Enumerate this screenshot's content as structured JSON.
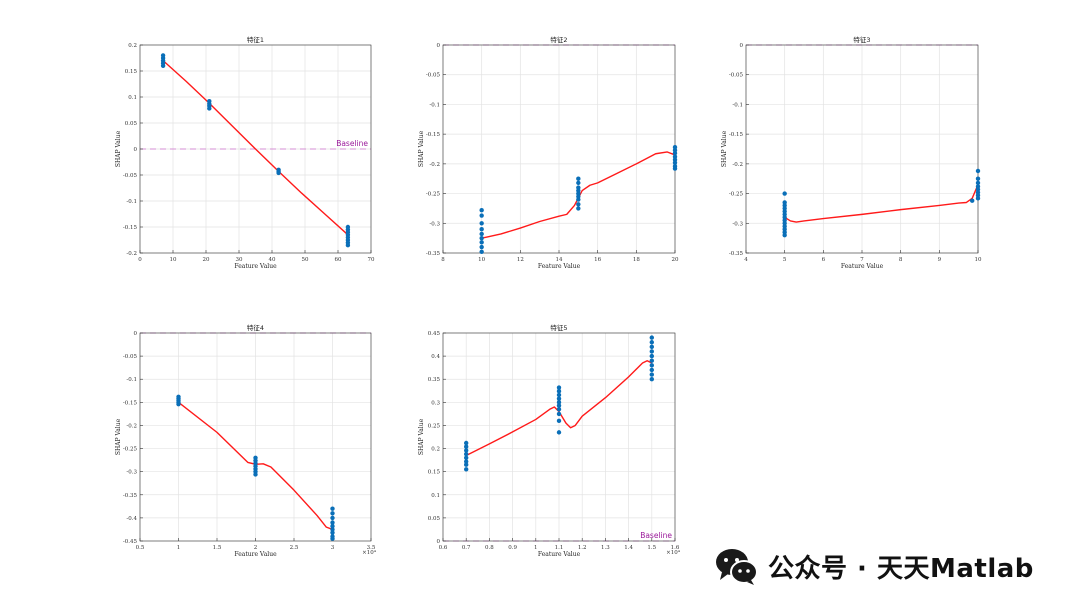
{
  "watermark": {
    "text": "公众号 · 天天Matlab",
    "icon": "wechat-icon"
  },
  "colors": {
    "points": "#0a6fb8",
    "fit": "#ff1a1a",
    "baseline": "#d58fd4",
    "baseline_text": "#9b199b",
    "grid": "#e3e3e3",
    "axis": "#333333"
  },
  "chart_data": [
    {
      "type": "scatter",
      "title": "特征1",
      "xlabel": "Feature Value",
      "ylabel": "SHAP Value",
      "xlim": [
        0,
        70
      ],
      "ylim": [
        -0.2,
        0.2
      ],
      "xticks": [
        0,
        10,
        20,
        30,
        40,
        50,
        60,
        70
      ],
      "yticks": [
        -0.2,
        -0.15,
        -0.1,
        -0.05,
        0,
        0.05,
        0.1,
        0.15,
        0.2
      ],
      "xtick_labels": [
        "0",
        "10",
        "20",
        "30",
        "40",
        "50",
        "60",
        "70"
      ],
      "ytick_labels": [
        "-0.2",
        "-0.15",
        "-0.1",
        "-0.05",
        "0",
        "0.05",
        "0.1",
        "0.15",
        "0.2"
      ],
      "x_exponent": "",
      "baseline": {
        "y": 0,
        "label": "Baseline"
      },
      "grid": true,
      "points": [
        [
          7,
          0.18
        ],
        [
          7,
          0.175
        ],
        [
          7,
          0.17
        ],
        [
          7,
          0.165
        ],
        [
          7,
          0.16
        ],
        [
          21,
          0.092
        ],
        [
          21,
          0.087
        ],
        [
          21,
          0.083
        ],
        [
          21,
          0.078
        ],
        [
          42,
          -0.04
        ],
        [
          42,
          -0.043
        ],
        [
          42,
          -0.046
        ],
        [
          63,
          -0.15
        ],
        [
          63,
          -0.155
        ],
        [
          63,
          -0.16
        ],
        [
          63,
          -0.165
        ],
        [
          63,
          -0.17
        ],
        [
          63,
          -0.175
        ],
        [
          63,
          -0.18
        ],
        [
          63,
          -0.185
        ]
      ],
      "fit_line": [
        [
          7,
          0.17
        ],
        [
          14,
          0.13
        ],
        [
          21,
          0.088
        ],
        [
          28,
          0.044
        ],
        [
          35,
          0.0
        ],
        [
          42,
          -0.043
        ],
        [
          49,
          -0.085
        ],
        [
          56,
          -0.125
        ],
        [
          63,
          -0.165
        ]
      ]
    },
    {
      "type": "scatter",
      "title": "特征2",
      "xlabel": "Feature Value",
      "ylabel": "SHAP Value",
      "xlim": [
        8,
        20
      ],
      "ylim": [
        -0.35,
        0
      ],
      "xticks": [
        8,
        10,
        12,
        14,
        16,
        18,
        20
      ],
      "yticks": [
        -0.35,
        -0.3,
        -0.25,
        -0.2,
        -0.15,
        -0.1,
        -0.05,
        0
      ],
      "xtick_labels": [
        "8",
        "10",
        "12",
        "14",
        "16",
        "18",
        "20"
      ],
      "ytick_labels": [
        "-0.35",
        "-0.3",
        "-0.25",
        "-0.2",
        "-0.15",
        "-0.1",
        "-0.05",
        "0"
      ],
      "x_exponent": "",
      "baseline": {
        "y": 0,
        "label": ""
      },
      "grid": true,
      "points": [
        [
          10,
          -0.278
        ],
        [
          10,
          -0.287
        ],
        [
          10,
          -0.3
        ],
        [
          10,
          -0.31
        ],
        [
          10,
          -0.318
        ],
        [
          10,
          -0.325
        ],
        [
          10,
          -0.332
        ],
        [
          10,
          -0.34
        ],
        [
          10,
          -0.348
        ],
        [
          15,
          -0.225
        ],
        [
          15,
          -0.232
        ],
        [
          15,
          -0.24
        ],
        [
          15,
          -0.245
        ],
        [
          15,
          -0.25
        ],
        [
          15,
          -0.255
        ],
        [
          15,
          -0.26
        ],
        [
          15,
          -0.268
        ],
        [
          15,
          -0.275
        ],
        [
          20,
          -0.172
        ],
        [
          20,
          -0.177
        ],
        [
          20,
          -0.182
        ],
        [
          20,
          -0.188
        ],
        [
          20,
          -0.193
        ],
        [
          20,
          -0.198
        ],
        [
          20,
          -0.204
        ],
        [
          20,
          -0.208
        ]
      ],
      "fit_line": [
        [
          10,
          -0.325
        ],
        [
          10.3,
          -0.323
        ],
        [
          11,
          -0.318
        ],
        [
          12,
          -0.308
        ],
        [
          13,
          -0.297
        ],
        [
          14,
          -0.288
        ],
        [
          14.4,
          -0.285
        ],
        [
          14.8,
          -0.27
        ],
        [
          15.2,
          -0.245
        ],
        [
          15.6,
          -0.236
        ],
        [
          16,
          -0.232
        ],
        [
          17,
          -0.216
        ],
        [
          18,
          -0.2
        ],
        [
          19,
          -0.183
        ],
        [
          19.6,
          -0.18
        ],
        [
          20,
          -0.185
        ]
      ]
    },
    {
      "type": "scatter",
      "title": "特征3",
      "xlabel": "Feature Value",
      "ylabel": "SHAP Value",
      "xlim": [
        4,
        10
      ],
      "ylim": [
        -0.35,
        0
      ],
      "xticks": [
        4,
        5,
        6,
        7,
        8,
        9,
        10
      ],
      "yticks": [
        -0.35,
        -0.3,
        -0.25,
        -0.2,
        -0.15,
        -0.1,
        -0.05,
        0
      ],
      "xtick_labels": [
        "4",
        "5",
        "6",
        "7",
        "8",
        "9",
        "10"
      ],
      "ytick_labels": [
        "-0.35",
        "-0.3",
        "-0.25",
        "-0.2",
        "-0.15",
        "-0.1",
        "-0.05",
        "0"
      ],
      "x_exponent": "",
      "baseline": {
        "y": 0,
        "label": ""
      },
      "grid": true,
      "points": [
        [
          5,
          -0.25
        ],
        [
          5,
          -0.265
        ],
        [
          5,
          -0.27
        ],
        [
          5,
          -0.275
        ],
        [
          5,
          -0.28
        ],
        [
          5,
          -0.285
        ],
        [
          5,
          -0.29
        ],
        [
          5,
          -0.295
        ],
        [
          5,
          -0.3
        ],
        [
          5,
          -0.305
        ],
        [
          5,
          -0.31
        ],
        [
          5,
          -0.315
        ],
        [
          5,
          -0.32
        ],
        [
          10,
          -0.212
        ],
        [
          10,
          -0.225
        ],
        [
          10,
          -0.232
        ],
        [
          10,
          -0.238
        ],
        [
          10,
          -0.243
        ],
        [
          10,
          -0.248
        ],
        [
          10,
          -0.253
        ],
        [
          10,
          -0.258
        ],
        [
          9.85,
          -0.262
        ]
      ],
      "fit_line": [
        [
          5,
          -0.29
        ],
        [
          5.15,
          -0.296
        ],
        [
          5.3,
          -0.298
        ],
        [
          5.5,
          -0.296
        ],
        [
          6,
          -0.292
        ],
        [
          7,
          -0.285
        ],
        [
          8,
          -0.277
        ],
        [
          9,
          -0.27
        ],
        [
          9.5,
          -0.266
        ],
        [
          9.7,
          -0.265
        ],
        [
          9.85,
          -0.258
        ],
        [
          10,
          -0.235
        ]
      ]
    },
    {
      "type": "scatter",
      "title": "特征4",
      "xlabel": "Feature Value",
      "ylabel": "SHAP Value",
      "xlim": [
        0.5,
        3.5
      ],
      "ylim": [
        -0.45,
        0
      ],
      "xticks": [
        0.5,
        1,
        1.5,
        2,
        2.5,
        3,
        3.5
      ],
      "yticks": [
        -0.45,
        -0.4,
        -0.35,
        -0.3,
        -0.25,
        -0.2,
        -0.15,
        -0.1,
        -0.05,
        0
      ],
      "xtick_labels": [
        "0.5",
        "1",
        "1.5",
        "2",
        "2.5",
        "3",
        "3.5"
      ],
      "ytick_labels": [
        "-0.45",
        "-0.4",
        "-0.35",
        "-0.3",
        "-0.25",
        "-0.2",
        "-0.15",
        "-0.1",
        "-0.05",
        "0"
      ],
      "x_exponent": "×10⁴",
      "baseline": {
        "y": 0,
        "label": ""
      },
      "grid": true,
      "points": [
        [
          1,
          -0.138
        ],
        [
          1,
          -0.142
        ],
        [
          1,
          -0.146
        ],
        [
          1,
          -0.15
        ],
        [
          1,
          -0.154
        ],
        [
          2,
          -0.27
        ],
        [
          2,
          -0.276
        ],
        [
          2,
          -0.282
        ],
        [
          2,
          -0.288
        ],
        [
          2,
          -0.294
        ],
        [
          2,
          -0.3
        ],
        [
          2,
          -0.306
        ],
        [
          3,
          -0.38
        ],
        [
          3,
          -0.39
        ],
        [
          3,
          -0.4
        ],
        [
          3,
          -0.41
        ],
        [
          3,
          -0.418
        ],
        [
          3,
          -0.425
        ],
        [
          3,
          -0.432
        ],
        [
          3,
          -0.44
        ],
        [
          3,
          -0.445
        ]
      ],
      "fit_line": [
        [
          1,
          -0.15
        ],
        [
          1.5,
          -0.215
        ],
        [
          1.9,
          -0.28
        ],
        [
          2.0,
          -0.284
        ],
        [
          2.1,
          -0.283
        ],
        [
          2.2,
          -0.29
        ],
        [
          2.5,
          -0.34
        ],
        [
          2.8,
          -0.395
        ],
        [
          2.92,
          -0.42
        ],
        [
          3,
          -0.425
        ]
      ]
    },
    {
      "type": "scatter",
      "title": "特征5",
      "xlabel": "Feature Value",
      "ylabel": "SHAP Value",
      "xlim": [
        0.6,
        1.6
      ],
      "ylim": [
        0,
        0.45
      ],
      "xticks": [
        0.6,
        0.7,
        0.8,
        0.9,
        1,
        1.1,
        1.2,
        1.3,
        1.4,
        1.5,
        1.6
      ],
      "yticks": [
        0,
        0.05,
        0.1,
        0.15,
        0.2,
        0.25,
        0.3,
        0.35,
        0.4,
        0.45
      ],
      "xtick_labels": [
        "0.6",
        "0.7",
        "0.8",
        "0.9",
        "1",
        "1.1",
        "1.2",
        "1.3",
        "1.4",
        "1.5",
        "1.6"
      ],
      "ytick_labels": [
        "0",
        "0.05",
        "0.1",
        "0.15",
        "0.2",
        "0.25",
        "0.3",
        "0.35",
        "0.4",
        "0.45"
      ],
      "x_exponent": "×10⁴",
      "baseline": {
        "y": 0,
        "label": "Baseline"
      },
      "grid": true,
      "points": [
        [
          0.7,
          0.155
        ],
        [
          0.7,
          0.165
        ],
        [
          0.7,
          0.172
        ],
        [
          0.7,
          0.18
        ],
        [
          0.7,
          0.188
        ],
        [
          0.7,
          0.196
        ],
        [
          0.7,
          0.204
        ],
        [
          0.7,
          0.212
        ],
        [
          1.1,
          0.235
        ],
        [
          1.1,
          0.26
        ],
        [
          1.1,
          0.275
        ],
        [
          1.1,
          0.285
        ],
        [
          1.1,
          0.293
        ],
        [
          1.1,
          0.3
        ],
        [
          1.1,
          0.308
        ],
        [
          1.1,
          0.316
        ],
        [
          1.1,
          0.324
        ],
        [
          1.1,
          0.332
        ],
        [
          1.5,
          0.35
        ],
        [
          1.5,
          0.36
        ],
        [
          1.5,
          0.37
        ],
        [
          1.5,
          0.38
        ],
        [
          1.5,
          0.39
        ],
        [
          1.5,
          0.4
        ],
        [
          1.5,
          0.41
        ],
        [
          1.5,
          0.42
        ],
        [
          1.5,
          0.43
        ],
        [
          1.5,
          0.44
        ]
      ],
      "fit_line": [
        [
          0.7,
          0.185
        ],
        [
          0.8,
          0.21
        ],
        [
          0.9,
          0.236
        ],
        [
          1.0,
          0.263
        ],
        [
          1.06,
          0.285
        ],
        [
          1.08,
          0.29
        ],
        [
          1.1,
          0.28
        ],
        [
          1.13,
          0.255
        ],
        [
          1.15,
          0.245
        ],
        [
          1.17,
          0.25
        ],
        [
          1.2,
          0.27
        ],
        [
          1.3,
          0.31
        ],
        [
          1.4,
          0.355
        ],
        [
          1.46,
          0.385
        ],
        [
          1.48,
          0.39
        ],
        [
          1.5,
          0.385
        ]
      ]
    }
  ]
}
